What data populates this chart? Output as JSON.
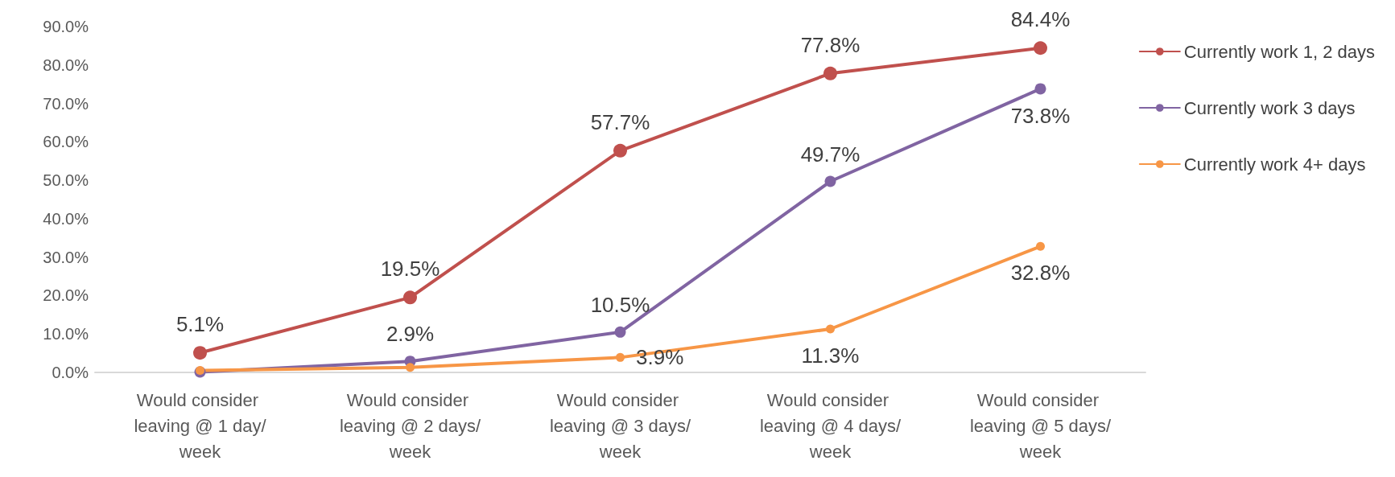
{
  "chart_data": {
    "type": "line",
    "categories": [
      "Would consider leaving @ 1 day/week",
      "Would consider leaving @ 2 days/week",
      "Would consider leaving @ 3 days/week",
      "Would consider leaving @ 4 days/week",
      "Would consider leaving @ 5 days/week"
    ],
    "series": [
      {
        "name": "Currently work 1, 2 days",
        "color": "#c0504d",
        "values": [
          5.1,
          19.5,
          57.7,
          77.8,
          84.4
        ],
        "value_labels": [
          "5.1%",
          "19.5%",
          "57.7%",
          "77.8%",
          "84.4%"
        ]
      },
      {
        "name": "Currently work 3 days",
        "color": "#8064a2",
        "values": [
          0.1,
          2.9,
          10.5,
          49.7,
          73.8
        ],
        "value_labels": [
          null,
          "2.9%",
          "10.5%",
          "49.7%",
          "73.8%"
        ]
      },
      {
        "name": "Currently work 4+ days",
        "color": "#f79646",
        "values": [
          0.5,
          1.3,
          3.9,
          11.3,
          32.8
        ],
        "value_labels": [
          null,
          null,
          "3.9%",
          "11.3%",
          "32.8%"
        ]
      }
    ],
    "ylim": [
      0,
      90
    ],
    "yticks": [
      {
        "value": 0,
        "label": "0.0%"
      },
      {
        "value": 10,
        "label": "10.0%"
      },
      {
        "value": 20,
        "label": "20.0%"
      },
      {
        "value": 30,
        "label": "30.0%"
      },
      {
        "value": 40,
        "label": "40.0%"
      },
      {
        "value": 50,
        "label": "50.0%"
      },
      {
        "value": 60,
        "label": "60.0%"
      },
      {
        "value": 70,
        "label": "70.0%"
      },
      {
        "value": 80,
        "label": "80.0%"
      },
      {
        "value": 90,
        "label": "90.0%"
      }
    ],
    "grid": false,
    "legend": "right",
    "marker": "circle",
    "line_style": "solid"
  }
}
